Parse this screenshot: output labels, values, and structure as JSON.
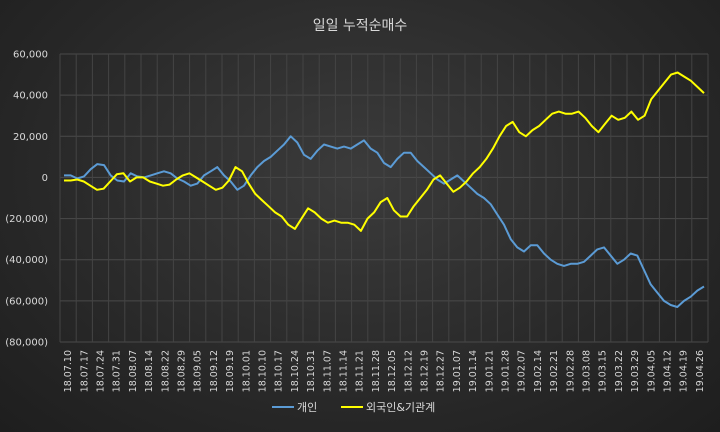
{
  "chart_data": {
    "type": "line",
    "title": "일일 누적순매수",
    "ylim": [
      -80000,
      60000
    ],
    "yticks": [
      60000,
      40000,
      20000,
      0,
      -20000,
      -40000,
      -60000,
      -80000
    ],
    "ytick_labels": [
      "60,000",
      "40,000",
      "20,000",
      "0",
      "(20,000)",
      "(40,000)",
      "(60,000)",
      "(80,000)"
    ],
    "xtick_labels": [
      "18.07.10",
      "18.07.17",
      "18.07.24",
      "18.07.31",
      "18.08.07",
      "18.08.14",
      "18.08.22",
      "18.08.29",
      "18.09.05",
      "18.09.12",
      "18.09.19",
      "18.10.01",
      "18.10.10",
      "18.10.17",
      "18.10.24",
      "18.10.31",
      "18.11.07",
      "18.11.14",
      "18.11.21",
      "18.11.28",
      "18.12.05",
      "18.12.12",
      "18.12.19",
      "18.12.27",
      "19.01.07",
      "19.01.14",
      "19.01.21",
      "19.01.28",
      "19.02.07",
      "19.02.14",
      "19.02.21",
      "19.02.28",
      "19.03.08",
      "19.03.15",
      "19.03.22",
      "19.03.29",
      "19.04.05",
      "19.04.12",
      "19.04.19",
      "19.04.26"
    ],
    "legend_position": "bottom",
    "series": [
      {
        "name": "개인",
        "color": "#5b9bd5",
        "values": [
          1000,
          1000,
          -500,
          500,
          4000,
          6500,
          6000,
          1000,
          -1500,
          -2000,
          2000,
          500,
          0,
          1000,
          2000,
          3000,
          2000,
          -500,
          -2000,
          -4000,
          -3000,
          1000,
          3000,
          5000,
          1000,
          -2000,
          -6000,
          -4000,
          1000,
          5000,
          8000,
          10000,
          13000,
          16000,
          20000,
          17000,
          11000,
          9000,
          13000,
          16000,
          15000,
          14000,
          15000,
          14000,
          16000,
          18000,
          14000,
          12000,
          7000,
          5000,
          9000,
          12000,
          12000,
          8000,
          5000,
          2000,
          -1000,
          -3000,
          -1000,
          1000,
          -2000,
          -5000,
          -8000,
          -10000,
          -13000,
          -18000,
          -23000,
          -30000,
          -34000,
          -36000,
          -33000,
          -33000,
          -37000,
          -40000,
          -42000,
          -43000,
          -42000,
          -42000,
          -41000,
          -38000,
          -35000,
          -34000,
          -38000,
          -42000,
          -40000,
          -37000,
          -38000,
          -45000,
          -52000,
          -56000,
          -60000,
          -62000,
          -63000,
          -60000,
          -58000,
          -55000,
          -53000
        ]
      },
      {
        "name": "외국인&기관계",
        "color": "#ffff00",
        "values": [
          -1500,
          -1500,
          -1000,
          -2000,
          -4000,
          -6000,
          -5500,
          -2000,
          1500,
          2000,
          -2000,
          0,
          0,
          -2000,
          -3000,
          -4000,
          -3500,
          -1000,
          1000,
          2000,
          0,
          -2000,
          -4000,
          -6000,
          -5000,
          -1500,
          5000,
          3000,
          -3000,
          -8000,
          -11000,
          -14000,
          -17000,
          -19000,
          -23000,
          -25000,
          -20000,
          -15000,
          -17000,
          -20000,
          -22000,
          -21000,
          -22000,
          -22000,
          -23000,
          -26000,
          -20000,
          -17000,
          -12000,
          -10000,
          -16000,
          -19000,
          -19000,
          -14000,
          -10000,
          -6000,
          -1000,
          1000,
          -3000,
          -7000,
          -5000,
          -2000,
          2000,
          5000,
          9000,
          14000,
          20000,
          25000,
          27000,
          22000,
          20000,
          23000,
          25000,
          28000,
          31000,
          32000,
          31000,
          31000,
          32000,
          29000,
          25000,
          22000,
          26000,
          30000,
          28000,
          29000,
          32000,
          28000,
          30000,
          38000,
          42000,
          46000,
          50000,
          51000,
          49000,
          47000,
          44000,
          41000
        ]
      }
    ]
  }
}
